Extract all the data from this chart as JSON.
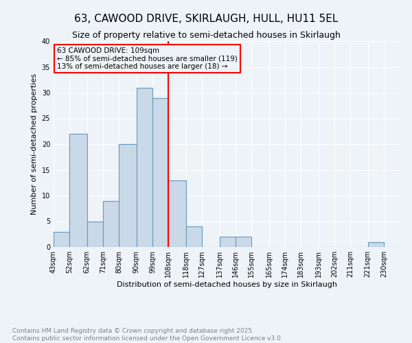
{
  "title": "63, CAWOOD DRIVE, SKIRLAUGH, HULL, HU11 5EL",
  "subtitle": "Size of property relative to semi-detached houses in Skirlaugh",
  "xlabel": "Distribution of semi-detached houses by size in Skirlaugh",
  "ylabel": "Number of semi-detached properties",
  "footer_line1": "Contains HM Land Registry data © Crown copyright and database right 2025.",
  "footer_line2": "Contains public sector information licensed under the Open Government Licence v3.0.",
  "annotation_line1": "63 CAWOOD DRIVE: 109sqm",
  "annotation_line2": "← 85% of semi-detached houses are smaller (119)",
  "annotation_line3": "13% of semi-detached houses are larger (18) →",
  "bins": [
    43,
    52,
    62,
    71,
    80,
    90,
    99,
    108,
    118,
    127,
    137,
    146,
    155,
    165,
    174,
    183,
    193,
    202,
    211,
    221,
    230
  ],
  "counts": [
    3,
    22,
    5,
    9,
    20,
    31,
    29,
    13,
    4,
    0,
    2,
    2,
    0,
    0,
    0,
    0,
    0,
    0,
    0,
    1,
    0
  ],
  "bar_color": "#c9d9e8",
  "bar_edge_color": "#6699bb",
  "red_line_x": 108,
  "ylim": [
    0,
    40
  ],
  "bg_color": "#eef3f8",
  "title_fontsize": 11,
  "subtitle_fontsize": 9,
  "axis_label_fontsize": 8,
  "tick_fontsize": 7,
  "annotation_fontsize": 7.5,
  "footer_fontsize": 6.5
}
